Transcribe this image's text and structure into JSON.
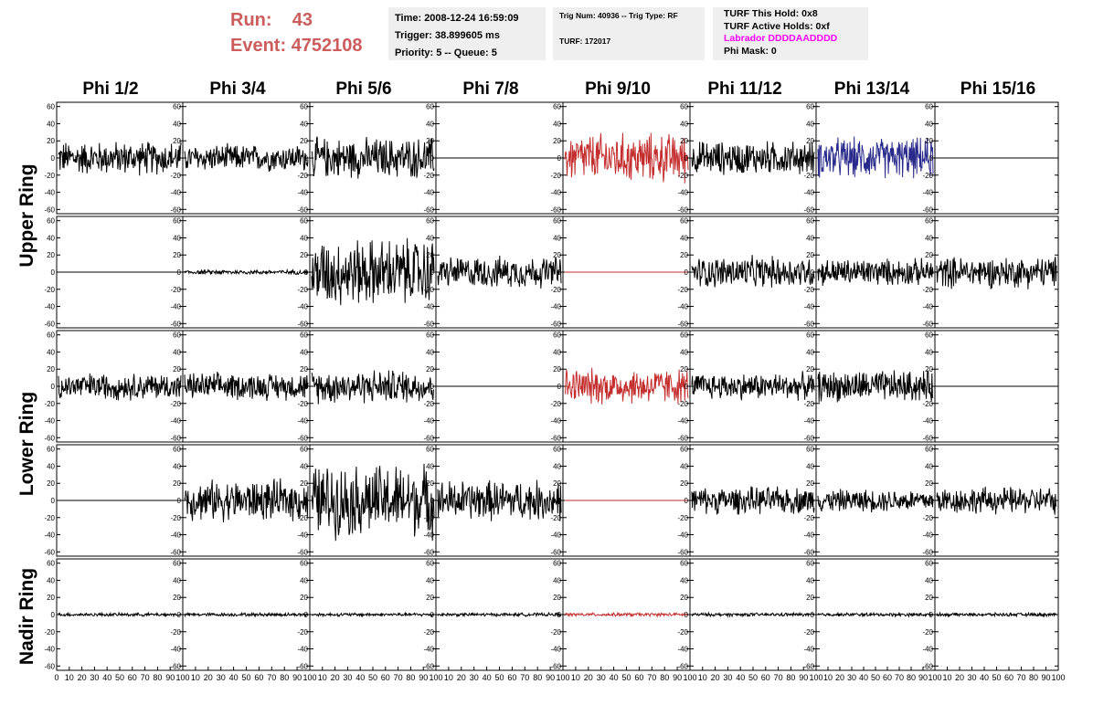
{
  "run_info": {
    "run_label": "Run:",
    "run_value": "43",
    "event_label": "Event:",
    "event_value": "4752108"
  },
  "time_box": {
    "time": "Time: 2008-12-24 16:59:09",
    "trigger": "Trigger: 38.899605 ms",
    "priority": "Priority: 5 -- Queue: 5"
  },
  "trig_box": {
    "trig": "Trig Num: 40936 -- Trig Type: RF",
    "turf": "TURF: 172017"
  },
  "turf_box": {
    "this_hold": "TURF This Hold: 0x8",
    "active_holds": "TURF Active Holds: 0xf",
    "labrador": "Labrador DDDDAADDDD",
    "phi_mask": "Phi Mask: 0"
  },
  "columns": [
    "Phi 1/2",
    "Phi 3/4",
    "Phi 5/6",
    "Phi 7/8",
    "Phi 9/10",
    "Phi 11/12",
    "Phi 13/14",
    "Phi 15/16"
  ],
  "row_labels": [
    "Upper Ring",
    "Lower Ring",
    "Nadir Ring"
  ],
  "colors": {
    "run_text": "#cd5c5c",
    "labrador": "#ff00ff",
    "trace_default": "#000000",
    "trace_red": "#c42d2d",
    "trace_blue": "#2a2a8c",
    "box_bg": "#efefef"
  },
  "chart_data": {
    "type": "line",
    "grid": false,
    "y_ticks": [
      60,
      40,
      20,
      0,
      -20,
      -40,
      -60
    ],
    "ylim": [
      -65,
      65
    ],
    "x_ticks": [
      "0",
      "10",
      "20",
      "30",
      "40",
      "50",
      "60",
      "70",
      "80",
      "90",
      "100"
    ],
    "xlim": [
      0,
      100
    ],
    "panel_rows": [
      {
        "row": 1,
        "amplitude": [
          15,
          12,
          18,
          0,
          22,
          15,
          18,
          0
        ],
        "trace": [
          "default",
          "default",
          "default",
          "default",
          "red",
          "default",
          "blue",
          "default"
        ]
      },
      {
        "row": 2,
        "amplitude": [
          0,
          2,
          30,
          14,
          0,
          14,
          12,
          14
        ],
        "trace": [
          "default",
          "default",
          "default",
          "default",
          "red",
          "default",
          "default",
          "default"
        ]
      },
      {
        "row": 3,
        "amplitude": [
          12,
          12,
          15,
          0,
          16,
          12,
          14,
          0
        ],
        "trace": [
          "default",
          "default",
          "default",
          "default",
          "red",
          "default",
          "default",
          "default"
        ]
      },
      {
        "row": 4,
        "amplitude": [
          0,
          18,
          32,
          18,
          0,
          12,
          10,
          12
        ],
        "trace": [
          "default",
          "default",
          "default",
          "default",
          "red",
          "default",
          "default",
          "default"
        ]
      },
      {
        "row": 5,
        "amplitude": [
          1.5,
          1.5,
          1.5,
          1.5,
          1.5,
          1.5,
          1.5,
          1.5
        ],
        "trace": [
          "default",
          "default",
          "default",
          "default",
          "red",
          "default",
          "default",
          "default"
        ]
      }
    ]
  }
}
